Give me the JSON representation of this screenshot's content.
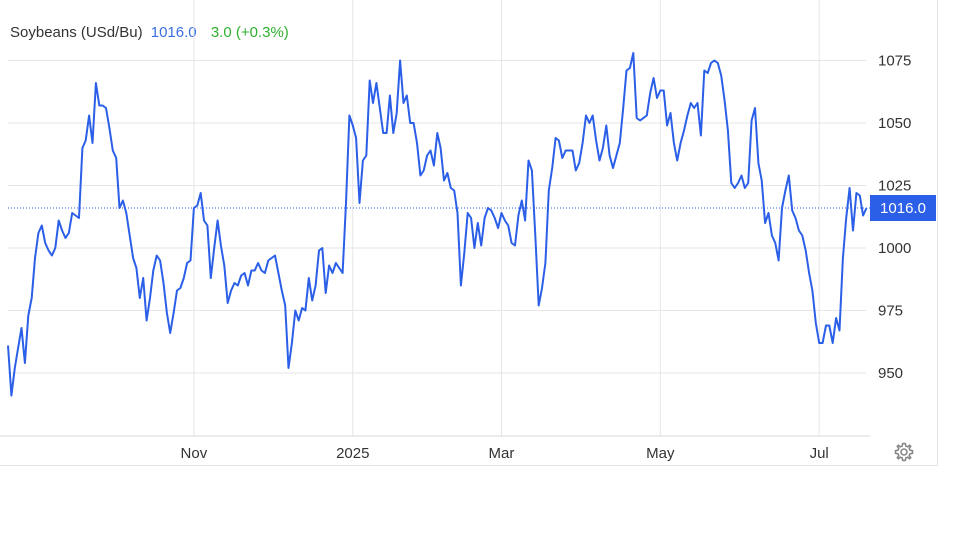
{
  "header": {
    "title": "Soybeans (USd/Bu)",
    "price": "1016.0",
    "change": "3.0 (+0.3%)"
  },
  "colors": {
    "line": "#2B5FE8",
    "price_text": "#3B6FE0",
    "change_text": "#2FB02F",
    "last_badge": "#2B5FE8",
    "grid": "#E6E6E6"
  },
  "icons": {
    "settings": "gear-icon"
  },
  "chart_data": {
    "type": "line",
    "title": "Soybeans (USd/Bu)",
    "xlabel": "",
    "ylabel": "",
    "ylim": [
      925,
      1100
    ],
    "yticks": [
      950,
      975,
      1000,
      1025,
      1050,
      1075
    ],
    "xticks": [
      {
        "label": "Nov",
        "index": 55
      },
      {
        "label": "2025",
        "index": 102
      },
      {
        "label": "Mar",
        "index": 146
      },
      {
        "label": "May",
        "index": 193
      },
      {
        "label": "Jul",
        "index": 240
      }
    ],
    "grid": true,
    "last_value_label": "1016.0",
    "series": [
      {
        "values": [
          961,
          941,
          952,
          960,
          968,
          954,
          973,
          980,
          996,
          1006,
          1009,
          1002,
          999,
          997,
          1000,
          1011,
          1007,
          1004,
          1006,
          1014,
          1013,
          1012,
          1040,
          1043,
          1053,
          1042,
          1066,
          1057,
          1057,
          1056,
          1048,
          1039,
          1036,
          1016,
          1019,
          1014,
          1005,
          996,
          992,
          980,
          988,
          971,
          980,
          991,
          997,
          995,
          986,
          974,
          966,
          974,
          983,
          984,
          988,
          994,
          995,
          1016,
          1017,
          1022,
          1011,
          1009,
          988,
          1000,
          1011,
          1001,
          993,
          978,
          983,
          986,
          985,
          989,
          990,
          985,
          991,
          991,
          994,
          991,
          990,
          995,
          996,
          997,
          990,
          983,
          977,
          952,
          962,
          975,
          971,
          976,
          975,
          988,
          979,
          985,
          999,
          1000,
          982,
          993,
          990,
          994,
          992,
          990,
          1018,
          1053,
          1049,
          1044,
          1018,
          1035,
          1037,
          1067,
          1058,
          1066,
          1056,
          1046,
          1046,
          1061,
          1046,
          1054,
          1075,
          1058,
          1061,
          1050,
          1050,
          1042,
          1029,
          1031,
          1037,
          1039,
          1033,
          1046,
          1040,
          1027,
          1030,
          1024,
          1023,
          1014,
          985,
          998,
          1014,
          1012,
          1000,
          1010,
          1001,
          1012,
          1016,
          1015,
          1012,
          1008,
          1014,
          1011,
          1009,
          1002,
          1001,
          1013,
          1019,
          1011,
          1035,
          1031,
          1005,
          977,
          984,
          994,
          1023,
          1032,
          1044,
          1043,
          1036,
          1039,
          1039,
          1039,
          1031,
          1034,
          1042,
          1053,
          1050,
          1053,
          1043,
          1035,
          1040,
          1049,
          1037,
          1032,
          1037,
          1042,
          1056,
          1071,
          1072,
          1078,
          1052,
          1051,
          1052,
          1053,
          1062,
          1068,
          1060,
          1063,
          1063,
          1049,
          1054,
          1042,
          1035,
          1042,
          1047,
          1053,
          1058,
          1056,
          1058,
          1045,
          1071,
          1070,
          1074,
          1075,
          1074,
          1069,
          1059,
          1047,
          1026,
          1024,
          1026,
          1029,
          1024,
          1026,
          1051,
          1056,
          1034,
          1027,
          1010,
          1014,
          1005,
          1002,
          995,
          1016,
          1023,
          1029,
          1015,
          1012,
          1007,
          1005,
          999,
          990,
          983,
          970,
          962,
          962,
          969,
          969,
          962,
          972,
          967,
          996,
          1012,
          1024,
          1007,
          1022,
          1021,
          1013,
          1016
        ]
      }
    ]
  }
}
